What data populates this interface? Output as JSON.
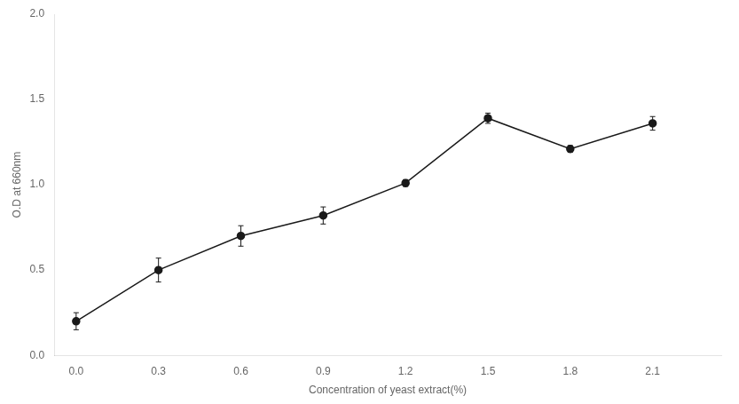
{
  "chart_data": {
    "type": "line",
    "x": [
      0.0,
      0.3,
      0.6,
      0.9,
      1.2,
      1.5,
      1.8,
      2.1
    ],
    "values": [
      0.2,
      0.5,
      0.7,
      0.82,
      1.01,
      1.39,
      1.21,
      1.36
    ],
    "errors": [
      0.05,
      0.07,
      0.06,
      0.05,
      0.02,
      0.03,
      0.02,
      0.04
    ],
    "xlabel": "Concentration of yeast extract(%)",
    "ylabel": "O.D at 660nm",
    "xlim": [
      -0.08,
      2.35
    ],
    "ylim": [
      0.0,
      2.0
    ],
    "xticks": [
      {
        "value": 0.0,
        "label": "0.0"
      },
      0.3,
      0.6,
      0.9,
      1.2,
      1.5,
      1.8,
      2.1
    ],
    "yticks": [
      {
        "value": 0.0,
        "label": "0.0"
      },
      0.5,
      {
        "value": 1.0,
        "label": "1.0"
      },
      1.5,
      {
        "value": 2.0,
        "label": "2.0"
      }
    ],
    "color": "#1a1a1a",
    "marker": "circle",
    "line_style": "solid",
    "grid": false
  }
}
